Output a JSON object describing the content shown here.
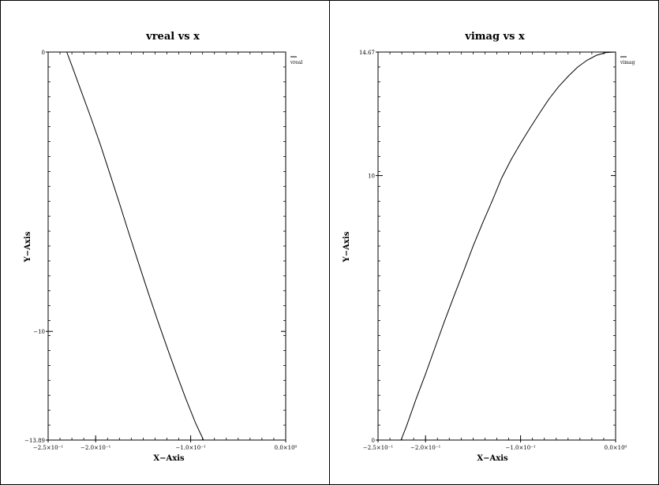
{
  "chart_data": [
    {
      "type": "line",
      "title": "vreal vs x",
      "xlabel": "X−Axis",
      "ylabel": "Y−Axis",
      "xlim": [
        -0.25,
        0.0
      ],
      "ylim": [
        -13.89,
        0
      ],
      "xticks": [
        -0.25,
        -0.2,
        -0.1,
        0.0
      ],
      "xtick_labels": [
        "−2.5×10⁻¹",
        "−2.0×10⁻¹",
        "−1.0×10⁻¹",
        "0.0×10⁰"
      ],
      "yticks": [
        0,
        -10,
        -13.89
      ],
      "ytick_labels": [
        "0",
        "−10",
        "−13.89"
      ],
      "legend": {
        "entries": [
          "vreal"
        ],
        "placement": "top-right-outside"
      },
      "series": [
        {
          "name": "vreal",
          "x": [
            -0.2304,
            -0.225,
            -0.215,
            -0.205,
            -0.195,
            -0.185,
            -0.175,
            -0.165,
            -0.155,
            -0.145,
            -0.135,
            -0.125,
            -0.115,
            -0.105,
            -0.095,
            -0.0865
          ],
          "y": [
            0.0,
            -0.49,
            -1.42,
            -2.35,
            -3.32,
            -4.36,
            -5.41,
            -6.49,
            -7.54,
            -8.58,
            -9.59,
            -10.56,
            -11.51,
            -12.42,
            -13.27,
            -13.89
          ]
        }
      ]
    },
    {
      "type": "line",
      "title": "vimag vs x",
      "xlabel": "X−Axis",
      "ylabel": "Y−Axis",
      "xlim": [
        -0.25,
        0.0
      ],
      "ylim": [
        0,
        14.67
      ],
      "xticks": [
        -0.25,
        -0.2,
        -0.1,
        0.0
      ],
      "xtick_labels": [
        "−2.5×10⁻¹",
        "−2.0×10⁻¹",
        "−1.0×10⁻¹",
        "0.0×10⁰"
      ],
      "yticks": [
        0,
        10,
        14.67
      ],
      "ytick_labels": [
        "0",
        "10",
        "14.67"
      ],
      "legend": {
        "entries": [
          "vimag"
        ],
        "placement": "top-right-outside"
      },
      "series": [
        {
          "name": "vimag",
          "x": [
            -0.2258,
            -0.22,
            -0.21,
            -0.2,
            -0.19,
            -0.18,
            -0.17,
            -0.16,
            -0.15,
            -0.14,
            -0.13,
            -0.12,
            -0.11,
            -0.1,
            -0.09,
            -0.08,
            -0.07,
            -0.06,
            -0.05,
            -0.04,
            -0.03,
            -0.02,
            -0.01,
            0.0
          ],
          "y": [
            0.0,
            0.53,
            1.55,
            2.5,
            3.5,
            4.5,
            5.45,
            6.38,
            7.33,
            8.2,
            9.03,
            9.9,
            10.6,
            11.22,
            11.8,
            12.36,
            12.9,
            13.36,
            13.75,
            14.1,
            14.36,
            14.55,
            14.65,
            14.67
          ]
        }
      ]
    }
  ]
}
